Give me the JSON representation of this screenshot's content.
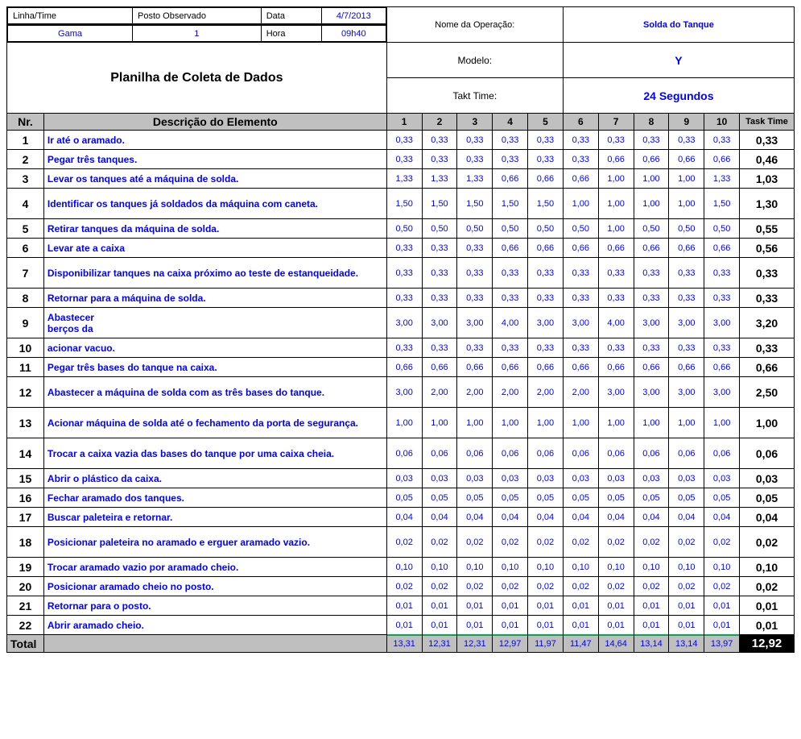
{
  "colors": {
    "blue": "#0000ff",
    "grayHeader": "#c0c0c0",
    "grayTotal": "#bfbfbf",
    "blackCell": "#000000",
    "white": "#ffffff",
    "greenAccent": "#00a84f"
  },
  "header": {
    "linha_label": "Linha/Time",
    "posto_label": "Posto Observado",
    "data_label": "Data",
    "data_value": "4/7/2013",
    "linha_value": "Gama",
    "posto_value": "1",
    "hora_label": "Hora",
    "hora_value": "09h40",
    "nome_op_label": "Nome da Operação:",
    "operation_name": "Solda do Tanque",
    "modelo_label": "Modelo:",
    "modelo_value": "Y",
    "takt_label": "Takt Time:",
    "takt_value": "24 Segundos",
    "planilha_title": "Planilha de Coleta de Dados"
  },
  "columns": {
    "nr": "Nr.",
    "desc": "Descrição do Elemento",
    "obs": [
      "1",
      "2",
      "3",
      "4",
      "5",
      "6",
      "7",
      "8",
      "9",
      "10"
    ],
    "task": "Task Time"
  },
  "rows": [
    {
      "nr": "1",
      "desc": "Ir até o aramado.",
      "v": [
        "0,33",
        "0,33",
        "0,33",
        "0,33",
        "0,33",
        "0,33",
        "0,33",
        "0,33",
        "0,33",
        "0,33"
      ],
      "t": "0,33",
      "tall": false
    },
    {
      "nr": "2",
      "desc": "Pegar três tanques.",
      "v": [
        "0,33",
        "0,33",
        "0,33",
        "0,33",
        "0,33",
        "0,33",
        "0,66",
        "0,66",
        "0,66",
        "0,66"
      ],
      "t": "0,46",
      "tall": false
    },
    {
      "nr": "3",
      "desc": "Levar os tanques até a máquina de solda.",
      "v": [
        "1,33",
        "1,33",
        "1,33",
        "0,66",
        "0,66",
        "0,66",
        "1,00",
        "1,00",
        "1,00",
        "1,33"
      ],
      "t": "1,03",
      "tall": false
    },
    {
      "nr": "4",
      "desc": "Identificar os tanques já soldados da máquina com caneta.",
      "v": [
        "1,50",
        "1,50",
        "1,50",
        "1,50",
        "1,50",
        "1,00",
        "1,00",
        "1,00",
        "1,00",
        "1,50"
      ],
      "t": "1,30",
      "tall": true
    },
    {
      "nr": "5",
      "desc": "Retirar tanques da máquina de solda.",
      "v": [
        "0,50",
        "0,50",
        "0,50",
        "0,50",
        "0,50",
        "0,50",
        "1,00",
        "0,50",
        "0,50",
        "0,50"
      ],
      "t": "0,55",
      "tall": false
    },
    {
      "nr": "6",
      "desc": "Levar ate a caixa",
      "v": [
        "0,33",
        "0,33",
        "0,33",
        "0,66",
        "0,66",
        "0,66",
        "0,66",
        "0,66",
        "0,66",
        "0,66"
      ],
      "t": "0,56",
      "tall": false
    },
    {
      "nr": "7",
      "desc": "Disponibilizar tanques na caixa próximo ao teste de estanqueidade.",
      "v": [
        "0,33",
        "0,33",
        "0,33",
        "0,33",
        "0,33",
        "0,33",
        "0,33",
        "0,33",
        "0,33",
        "0,33"
      ],
      "t": "0,33",
      "tall": true
    },
    {
      "nr": "8",
      "desc": "Retornar para a máquina de solda.",
      "v": [
        "0,33",
        "0,33",
        "0,33",
        "0,33",
        "0,33",
        "0,33",
        "0,33",
        "0,33",
        "0,33",
        "0,33"
      ],
      "t": "0,33",
      "tall": false
    },
    {
      "nr": "9",
      "desc": "Abastecer\nberços da",
      "v": [
        "3,00",
        "3,00",
        "3,00",
        "4,00",
        "3,00",
        "3,00",
        "4,00",
        "3,00",
        "3,00",
        "3,00"
      ],
      "t": "3,20",
      "tall": true
    },
    {
      "nr": "10",
      "desc": "acionar vacuo.",
      "v": [
        "0,33",
        "0,33",
        "0,33",
        "0,33",
        "0,33",
        "0,33",
        "0,33",
        "0,33",
        "0,33",
        "0,33"
      ],
      "t": "0,33",
      "tall": false
    },
    {
      "nr": "11",
      "desc": "Pegar três bases do tanque na caixa.",
      "v": [
        "0,66",
        "0,66",
        "0,66",
        "0,66",
        "0,66",
        "0,66",
        "0,66",
        "0,66",
        "0,66",
        "0,66"
      ],
      "t": "0,66",
      "tall": false
    },
    {
      "nr": "12",
      "desc": "Abastecer a máquina de solda com as três bases do tanque.",
      "v": [
        "3,00",
        "2,00",
        "2,00",
        "2,00",
        "2,00",
        "2,00",
        "3,00",
        "3,00",
        "3,00",
        "3,00"
      ],
      "t": "2,50",
      "tall": true
    },
    {
      "nr": "13",
      "desc": "Acionar máquina de solda até o fechamento da porta de segurança.",
      "v": [
        "1,00",
        "1,00",
        "1,00",
        "1,00",
        "1,00",
        "1,00",
        "1,00",
        "1,00",
        "1,00",
        "1,00"
      ],
      "t": "1,00",
      "tall": true
    },
    {
      "nr": "14",
      "desc": "Trocar a caixa vazia das bases do tanque por uma caixa cheia.",
      "v": [
        "0,06",
        "0,06",
        "0,06",
        "0,06",
        "0,06",
        "0,06",
        "0,06",
        "0,06",
        "0,06",
        "0,06"
      ],
      "t": "0,06",
      "tall": true
    },
    {
      "nr": "15",
      "desc": "Abrir o plástico da caixa.",
      "v": [
        "0,03",
        "0,03",
        "0,03",
        "0,03",
        "0,03",
        "0,03",
        "0,03",
        "0,03",
        "0,03",
        "0,03"
      ],
      "t": "0,03",
      "tall": false
    },
    {
      "nr": "16",
      "desc": "Fechar aramado dos tanques.",
      "v": [
        "0,05",
        "0,05",
        "0,05",
        "0,05",
        "0,05",
        "0,05",
        "0,05",
        "0,05",
        "0,05",
        "0,05"
      ],
      "t": "0,05",
      "tall": false
    },
    {
      "nr": "17",
      "desc": "Buscar paleteira e retornar.",
      "v": [
        "0,04",
        "0,04",
        "0,04",
        "0,04",
        "0,04",
        "0,04",
        "0,04",
        "0,04",
        "0,04",
        "0,04"
      ],
      "t": "0,04",
      "tall": false
    },
    {
      "nr": "18",
      "desc": "Posicionar paleteira no aramado e erguer aramado vazio.",
      "v": [
        "0,02",
        "0,02",
        "0,02",
        "0,02",
        "0,02",
        "0,02",
        "0,02",
        "0,02",
        "0,02",
        "0,02"
      ],
      "t": "0,02",
      "tall": true
    },
    {
      "nr": "19",
      "desc": "Trocar aramado vazio por aramado cheio.",
      "v": [
        "0,10",
        "0,10",
        "0,10",
        "0,10",
        "0,10",
        "0,10",
        "0,10",
        "0,10",
        "0,10",
        "0,10"
      ],
      "t": "0,10",
      "tall": false
    },
    {
      "nr": "20",
      "desc": "Posicionar aramado cheio no posto.",
      "v": [
        "0,02",
        "0,02",
        "0,02",
        "0,02",
        "0,02",
        "0,02",
        "0,02",
        "0,02",
        "0,02",
        "0,02"
      ],
      "t": "0,02",
      "tall": false
    },
    {
      "nr": "21",
      "desc": "Retornar para o posto.",
      "v": [
        "0,01",
        "0,01",
        "0,01",
        "0,01",
        "0,01",
        "0,01",
        "0,01",
        "0,01",
        "0,01",
        "0,01"
      ],
      "t": "0,01",
      "tall": false
    },
    {
      "nr": "22",
      "desc": "Abrir aramado cheio.",
      "v": [
        "0,01",
        "0,01",
        "0,01",
        "0,01",
        "0,01",
        "0,01",
        "0,01",
        "0,01",
        "0,01",
        "0,01"
      ],
      "t": "0,01",
      "tall": false
    }
  ],
  "totals": {
    "label": "Total",
    "v": [
      "13,31",
      "12,31",
      "12,31",
      "12,97",
      "11,97",
      "11,47",
      "14,64",
      "13,14",
      "13,14",
      "13,97"
    ],
    "t": "12,92"
  }
}
